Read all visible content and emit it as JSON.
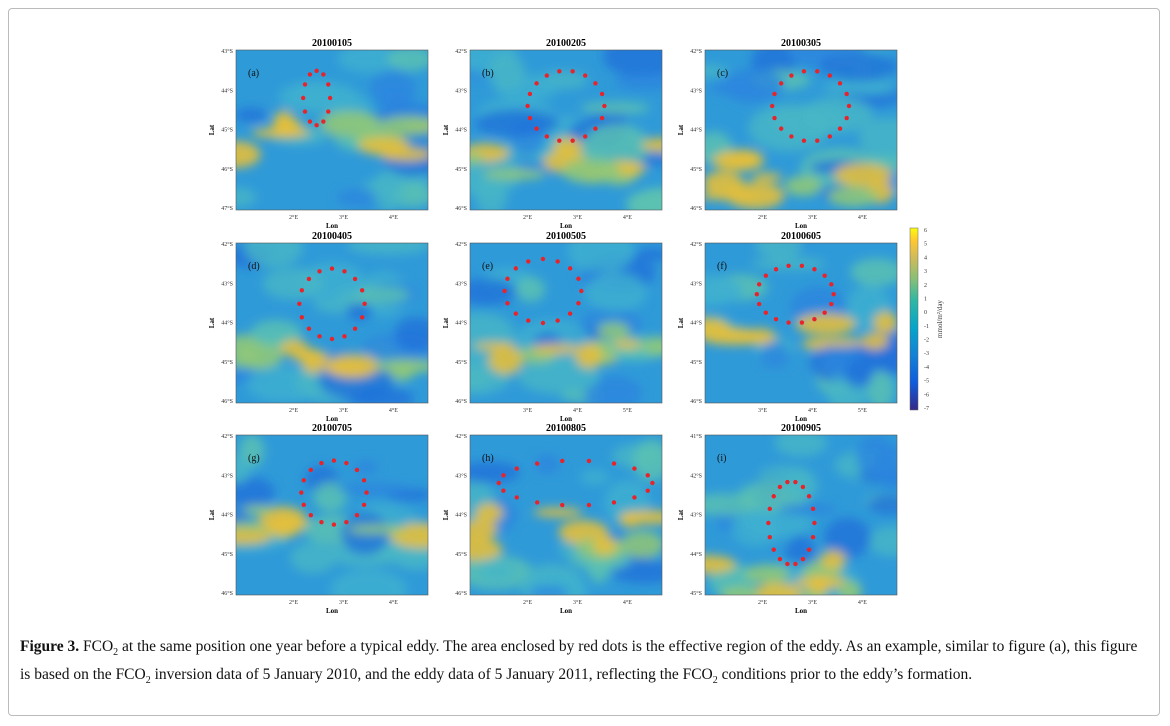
{
  "figure": {
    "panels": [
      {
        "title": "20100105",
        "label": "(a)",
        "yticks": [
          "43°S",
          "44°S",
          "45°S",
          "46°S",
          "47°S"
        ],
        "xticks": [
          "2°E",
          "3°E",
          "4°E"
        ],
        "xlabel": "Lon",
        "ylabel": "Lat"
      },
      {
        "title": "20100205",
        "label": "(b)",
        "yticks": [
          "42°S",
          "43°S",
          "44°S",
          "45°S",
          "46°S"
        ],
        "xticks": [
          "2°E",
          "3°E",
          "4°E"
        ],
        "xlabel": "Lon",
        "ylabel": "Lat"
      },
      {
        "title": "20100305",
        "label": "(c)",
        "yticks": [
          "42°S",
          "43°S",
          "44°S",
          "45°S",
          "46°S"
        ],
        "xticks": [
          "2°E",
          "3°E",
          "4°E"
        ],
        "xlabel": "Lon",
        "ylabel": "Lat"
      },
      {
        "title": "20100405",
        "label": "(d)",
        "yticks": [
          "42°S",
          "43°S",
          "44°S",
          "45°S",
          "46°S"
        ],
        "xticks": [
          "2°E",
          "3°E",
          "4°E"
        ],
        "xlabel": "Lon",
        "ylabel": "Lat"
      },
      {
        "title": "20100505",
        "label": "(e)",
        "yticks": [
          "42°S",
          "43°S",
          "44°S",
          "45°S",
          "46°S"
        ],
        "xticks": [
          "3°E",
          "4°E",
          "5°E"
        ],
        "xlabel": "Lon",
        "ylabel": "Lat"
      },
      {
        "title": "20100605",
        "label": "(f)",
        "yticks": [
          "42°S",
          "43°S",
          "44°S",
          "45°S",
          "46°S"
        ],
        "xticks": [
          "3°E",
          "4°E",
          "5°E"
        ],
        "xlabel": "Lon",
        "ylabel": "Lat"
      },
      {
        "title": "20100705",
        "label": "(g)",
        "yticks": [
          "42°S",
          "43°S",
          "44°S",
          "45°S",
          "46°S"
        ],
        "xticks": [
          "2°E",
          "3°E",
          "4°E"
        ],
        "xlabel": "Lon",
        "ylabel": "Lat"
      },
      {
        "title": "20100805",
        "label": "(h)",
        "yticks": [
          "42°S",
          "43°S",
          "44°S",
          "45°S",
          "46°S"
        ],
        "xticks": [
          "2°E",
          "3°E",
          "4°E"
        ],
        "xlabel": "Lon",
        "ylabel": "Lat"
      },
      {
        "title": "20100905",
        "label": "(i)",
        "yticks": [
          "41°S",
          "42°S",
          "43°S",
          "44°S",
          "45°S"
        ],
        "xticks": [
          "2°E",
          "3°E",
          "4°E"
        ],
        "xlabel": "Lon",
        "ylabel": "Lat"
      }
    ],
    "colorbar": {
      "ticks": [
        "6",
        "5",
        "4",
        "3",
        "2",
        "1",
        "0",
        "-1",
        "-2",
        "-3",
        "-4",
        "-5",
        "-6",
        "-7"
      ],
      "label": "mmol/m²/day"
    },
    "caption": {
      "label": "Figure 3.",
      "parts": [
        "FCO",
        "2",
        " at the same position one year before a typical eddy. The area enclosed by red dots is the effective region of the eddy. As an example, similar to figure (a), this figure is based on the FCO",
        "2",
        " inversion data of 5 January 2010, and the eddy data of 5 January 2011, reflecting the FCO",
        "2",
        " conditions prior to the eddy’s formation."
      ]
    }
  }
}
